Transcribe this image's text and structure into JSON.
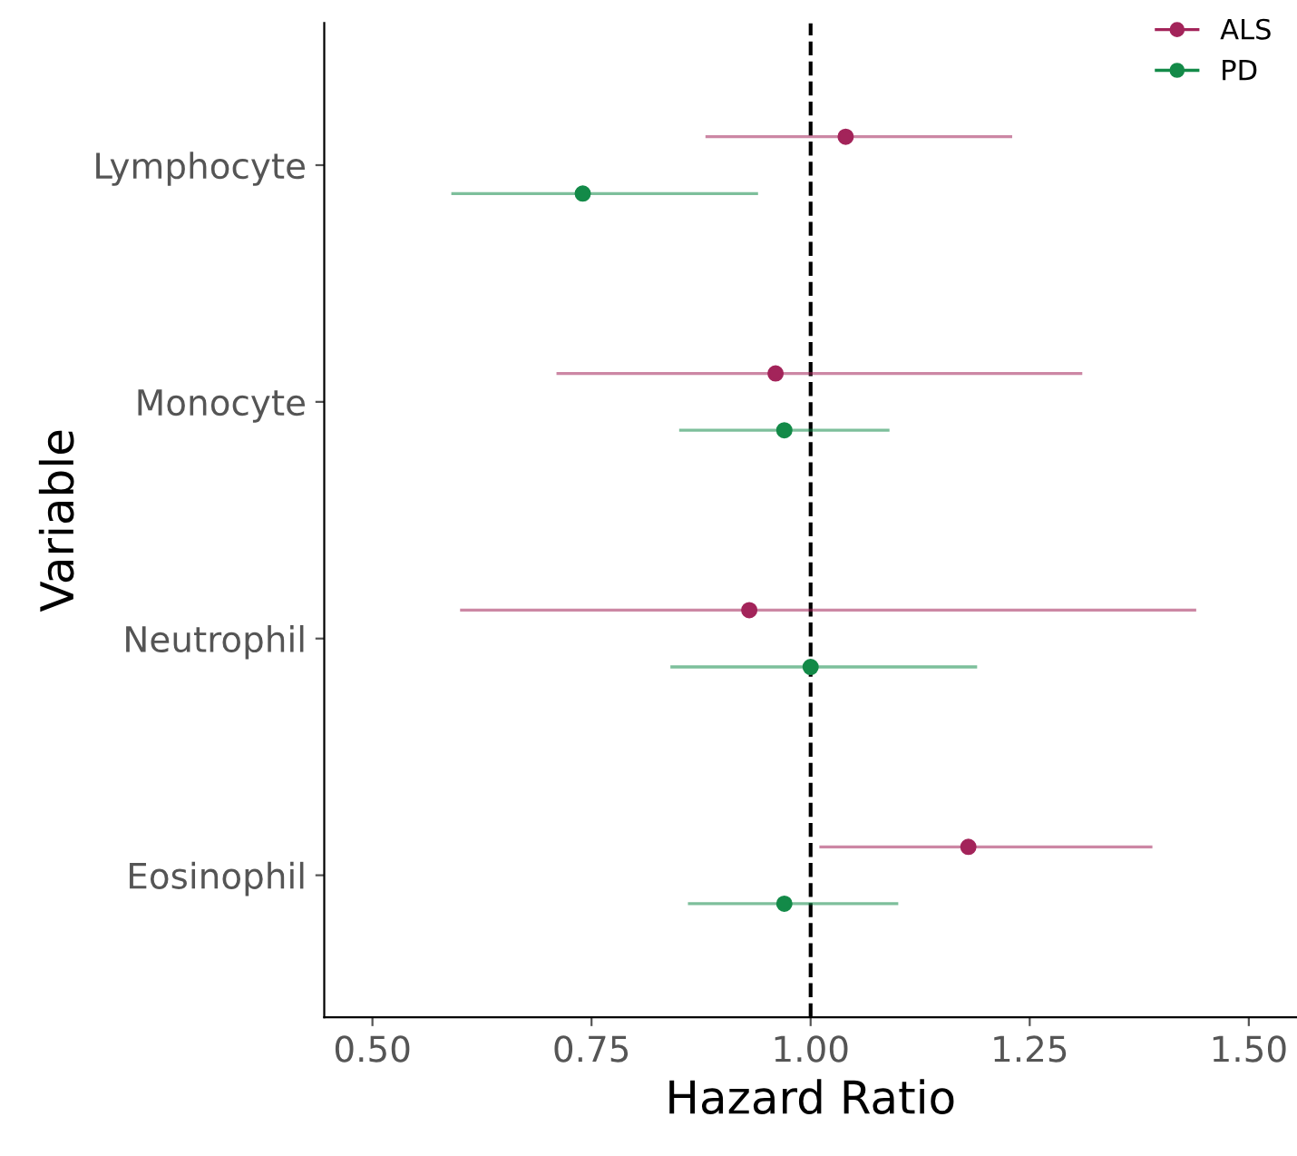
{
  "chart_data": {
    "type": "scatter",
    "orientation": "horizontal",
    "xlabel": "Hazard Ratio",
    "ylabel": "Variable",
    "categories": [
      "Lymphocyte",
      "Monocyte",
      "Neutrophil",
      "Eosinophil"
    ],
    "series": [
      {
        "name": "ALS",
        "color": "#a3245a",
        "values": [
          1.04,
          0.96,
          0.93,
          1.18
        ],
        "errors": [
          [
            0.88,
            1.23
          ],
          [
            0.71,
            1.31
          ],
          [
            0.6,
            1.44
          ],
          [
            1.01,
            1.39
          ]
        ]
      },
      {
        "name": "PD",
        "color": "#138a48",
        "values": [
          0.74,
          0.97,
          1.0,
          0.97
        ],
        "errors": [
          [
            0.59,
            0.94
          ],
          [
            0.85,
            1.09
          ],
          [
            0.84,
            1.19
          ],
          [
            0.86,
            1.1
          ]
        ]
      }
    ],
    "xlim": [
      0.445,
      1.555
    ],
    "xticks": [
      {
        "value": 0.5,
        "label": "0.50"
      },
      {
        "value": 0.75,
        "label": "0.75"
      },
      {
        "value": 1.0,
        "label": "1.00"
      },
      {
        "value": 1.25,
        "label": "1.25"
      },
      {
        "value": 1.5,
        "label": "1.50"
      }
    ],
    "ref_lines": [
      {
        "axis": "x",
        "value": 1.0,
        "color": "#000000",
        "line_style": "dashed"
      }
    ],
    "grid": false,
    "legend": "top right",
    "marker": "circle"
  }
}
